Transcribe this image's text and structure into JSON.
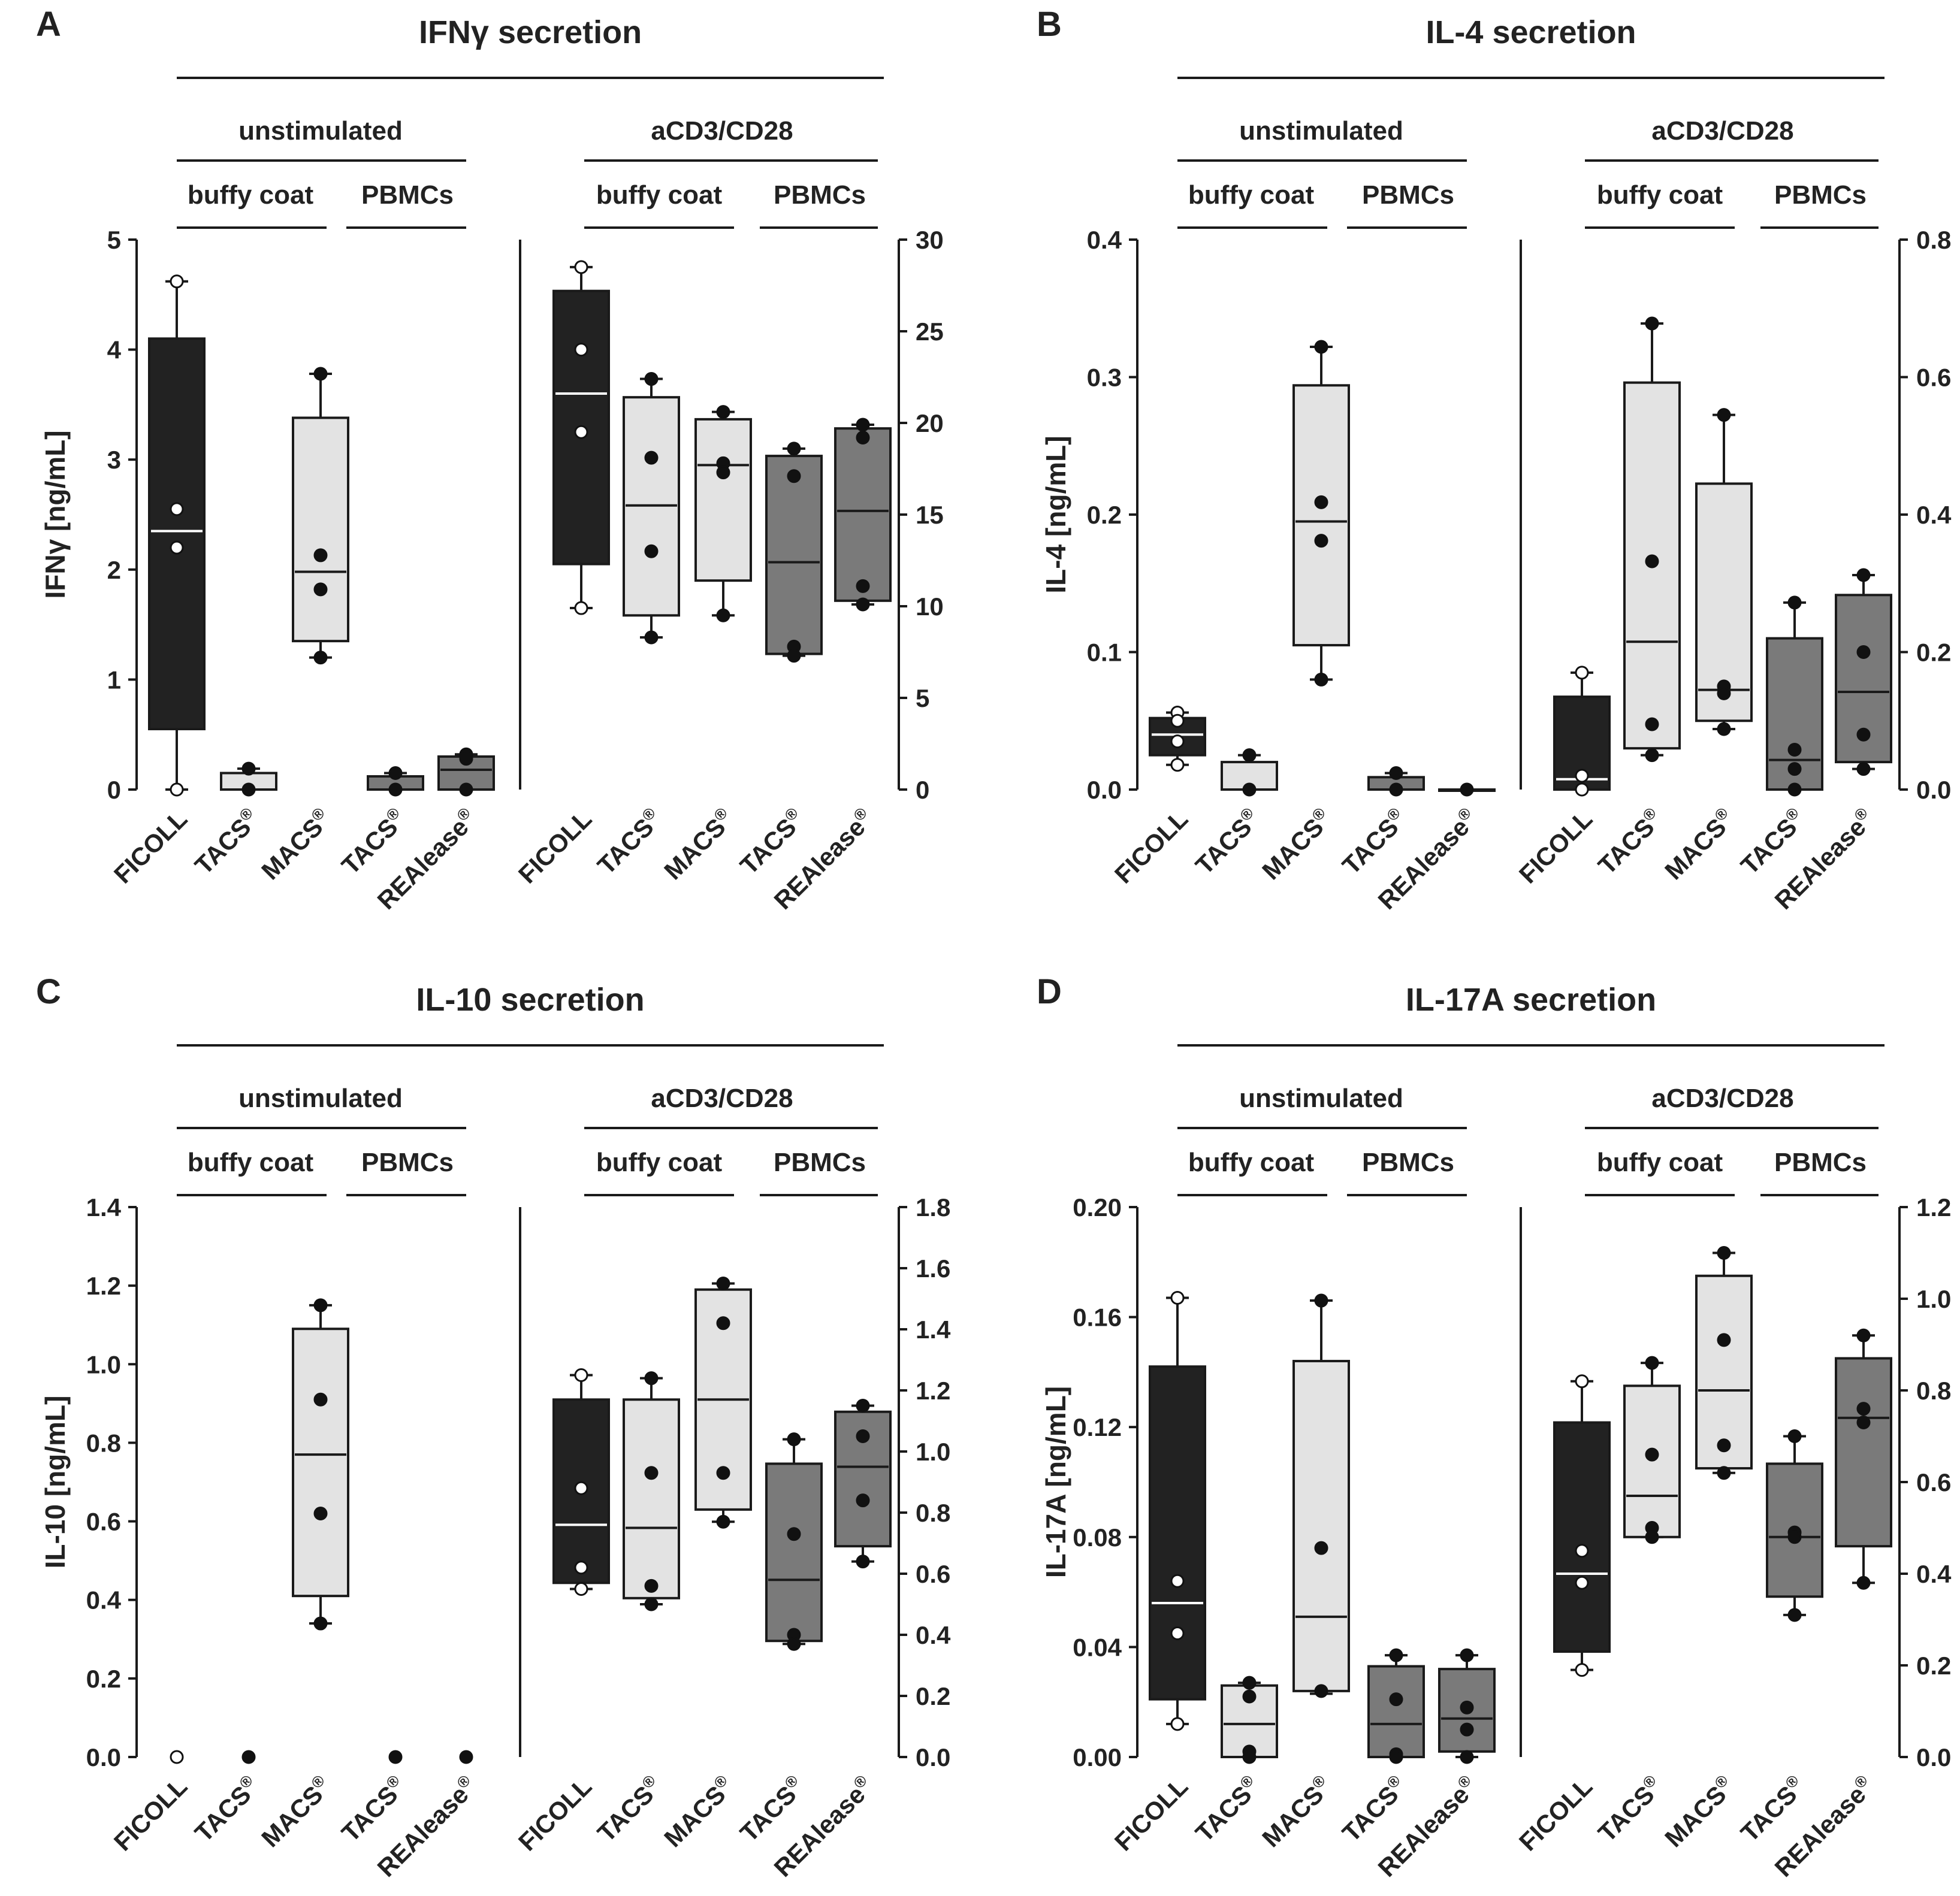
{
  "figure": {
    "colors": {
      "FICOLL": "#222222",
      "TACS_BC": "#e3e3e3",
      "MACS_BC": "#e3e3e3",
      "TACS_PB": "#7a7a7a",
      "REAlease_PB": "#7a7a7a"
    },
    "group_labels": {
      "unstimulated": "unstimulated",
      "stimulated": "aCD3/CD28",
      "buffy_coat": "buffy coat",
      "pbmcs": "PBMCs"
    },
    "methods": [
      "FICOLL",
      "TACS",
      "MACS",
      "TACS",
      "REAlease"
    ],
    "reg_mark": "®"
  },
  "chart_data": [
    {
      "panel": "A",
      "type": "box",
      "title": "IFNγ secretion",
      "ylabel": "IFNγ [ng/mL]",
      "left_axis": {
        "range": [
          0,
          5
        ],
        "ticks": [
          "0",
          "1",
          "2",
          "3",
          "4",
          "5"
        ]
      },
      "right_axis": {
        "range": [
          0,
          30
        ],
        "ticks": [
          "0",
          "5",
          "10",
          "15",
          "20",
          "25",
          "30"
        ]
      },
      "unstimulated": [
        {
          "method": "FICOLL",
          "q1": 0.55,
          "median": 2.35,
          "q3": 4.1,
          "whisker_low": 0.0,
          "whisker_high": 4.62,
          "points": [
            2.55,
            2.2,
            0.0,
            4.62
          ]
        },
        {
          "method": "TACS",
          "q1": 0.0,
          "median": 0.0,
          "q3": 0.15,
          "whisker_low": 0.0,
          "whisker_high": 0.19,
          "points": [
            0.19,
            0.0
          ]
        },
        {
          "method": "MACS",
          "q1": 1.35,
          "median": 1.98,
          "q3": 3.38,
          "whisker_low": 1.2,
          "whisker_high": 3.78,
          "points": [
            3.78,
            2.13,
            1.82,
            1.2
          ]
        },
        {
          "method": "TACS",
          "q1": 0.0,
          "median": 0.0,
          "q3": 0.12,
          "whisker_low": 0.0,
          "whisker_high": 0.15,
          "points": [
            0.15,
            0.0
          ]
        },
        {
          "method": "REAlease",
          "q1": 0.0,
          "median": 0.18,
          "q3": 0.3,
          "whisker_low": 0.0,
          "whisker_high": 0.32,
          "points": [
            0.32,
            0.0,
            0.28
          ]
        }
      ],
      "stimulated": [
        {
          "method": "FICOLL",
          "q1": 12.3,
          "median": 21.6,
          "q3": 27.2,
          "whisker_low": 9.9,
          "whisker_high": 28.5,
          "points": [
            28.5,
            24.0,
            19.5,
            9.9
          ]
        },
        {
          "method": "TACS",
          "q1": 9.5,
          "median": 15.5,
          "q3": 21.4,
          "whisker_low": 8.3,
          "whisker_high": 22.4,
          "points": [
            22.4,
            18.1,
            13.0,
            8.3
          ]
        },
        {
          "method": "MACS",
          "q1": 11.4,
          "median": 17.7,
          "q3": 20.2,
          "whisker_low": 9.5,
          "whisker_high": 20.6,
          "points": [
            20.6,
            17.8,
            17.3,
            9.5
          ]
        },
        {
          "method": "TACS",
          "q1": 7.4,
          "median": 12.4,
          "q3": 18.2,
          "whisker_low": 7.3,
          "whisker_high": 18.6,
          "points": [
            18.6,
            17.1,
            7.8,
            7.3
          ]
        },
        {
          "method": "REAlease",
          "q1": 10.3,
          "median": 15.2,
          "q3": 19.7,
          "whisker_low": 10.1,
          "whisker_high": 19.9,
          "points": [
            19.9,
            19.2,
            11.1,
            10.1
          ]
        }
      ]
    },
    {
      "panel": "B",
      "type": "box",
      "title": "IL-4 secretion",
      "ylabel": "IL-4 [ng/mL]",
      "left_axis": {
        "range": [
          0,
          0.4
        ],
        "ticks": [
          "0.0",
          "0.1",
          "0.2",
          "0.3",
          "0.4"
        ]
      },
      "right_axis": {
        "range": [
          0,
          0.8
        ],
        "ticks": [
          "0.0",
          "0.2",
          "0.4",
          "0.6",
          "0.8"
        ]
      },
      "unstimulated": [
        {
          "method": "FICOLL",
          "q1": 0.025,
          "median": 0.04,
          "q3": 0.052,
          "whisker_low": 0.018,
          "whisker_high": 0.056,
          "points": [
            0.056,
            0.05,
            0.035,
            0.018
          ]
        },
        {
          "method": "TACS",
          "q1": 0.0,
          "median": 0.0,
          "q3": 0.02,
          "whisker_low": 0.0,
          "whisker_high": 0.025,
          "points": [
            0.025,
            0.0
          ]
        },
        {
          "method": "MACS",
          "q1": 0.105,
          "median": 0.195,
          "q3": 0.294,
          "whisker_low": 0.08,
          "whisker_high": 0.322,
          "points": [
            0.322,
            0.209,
            0.181,
            0.08
          ]
        },
        {
          "method": "TACS",
          "q1": 0.0,
          "median": 0.0,
          "q3": 0.009,
          "whisker_low": 0.0,
          "whisker_high": 0.012,
          "points": [
            0.012,
            0.0
          ]
        },
        {
          "method": "REAlease",
          "q1": 0.0,
          "median": 0.0,
          "q3": 0.0,
          "whisker_low": 0.0,
          "whisker_high": 0.0,
          "points": [
            0.0
          ]
        }
      ],
      "stimulated": [
        {
          "method": "FICOLL",
          "q1": 0.0,
          "median": 0.015,
          "q3": 0.135,
          "whisker_low": 0.0,
          "whisker_high": 0.17,
          "points": [
            0.17,
            0.02,
            0.0
          ]
        },
        {
          "method": "TACS",
          "q1": 0.06,
          "median": 0.215,
          "q3": 0.592,
          "whisker_low": 0.05,
          "whisker_high": 0.678,
          "points": [
            0.678,
            0.332,
            0.095,
            0.05
          ]
        },
        {
          "method": "MACS",
          "q1": 0.1,
          "median": 0.145,
          "q3": 0.445,
          "whisker_low": 0.088,
          "whisker_high": 0.545,
          "points": [
            0.545,
            0.15,
            0.14,
            0.088
          ]
        },
        {
          "method": "TACS",
          "q1": 0.0,
          "median": 0.043,
          "q3": 0.22,
          "whisker_low": 0.0,
          "whisker_high": 0.272,
          "points": [
            0.272,
            0.058,
            0.03,
            0.0
          ]
        },
        {
          "method": "REAlease",
          "q1": 0.04,
          "median": 0.142,
          "q3": 0.283,
          "whisker_low": 0.03,
          "whisker_high": 0.312,
          "points": [
            0.312,
            0.2,
            0.08,
            0.03
          ]
        }
      ]
    },
    {
      "panel": "C",
      "type": "box",
      "title": "IL-10 secretion",
      "ylabel": "IL-10 [ng/mL]",
      "left_axis": {
        "range": [
          0,
          1.4
        ],
        "ticks": [
          "0.0",
          "0.2",
          "0.4",
          "0.6",
          "0.8",
          "1.0",
          "1.2",
          "1.4"
        ]
      },
      "right_axis": {
        "range": [
          0,
          1.8
        ],
        "ticks": [
          "0.0",
          "0.2",
          "0.4",
          "0.6",
          "0.8",
          "1.0",
          "1.2",
          "1.4",
          "1.6",
          "1.8"
        ]
      },
      "unstimulated": [
        {
          "method": "FICOLL",
          "points": [
            0.0
          ]
        },
        {
          "method": "TACS",
          "points": [
            0.0
          ]
        },
        {
          "method": "MACS",
          "q1": 0.41,
          "median": 0.77,
          "q3": 1.09,
          "whisker_low": 0.34,
          "whisker_high": 1.15,
          "points": [
            1.15,
            0.91,
            0.62,
            0.34
          ]
        },
        {
          "method": "TACS",
          "points": [
            0.0
          ]
        },
        {
          "method": "REAlease",
          "points": [
            0.0
          ]
        }
      ],
      "stimulated": [
        {
          "method": "FICOLL",
          "q1": 0.57,
          "median": 0.76,
          "q3": 1.17,
          "whisker_low": 0.55,
          "whisker_high": 1.25,
          "points": [
            1.25,
            0.88,
            0.62,
            0.55
          ]
        },
        {
          "method": "TACS",
          "q1": 0.52,
          "median": 0.75,
          "q3": 1.17,
          "whisker_low": 0.5,
          "whisker_high": 1.24,
          "points": [
            1.24,
            0.93,
            0.56,
            0.5
          ]
        },
        {
          "method": "MACS",
          "q1": 0.81,
          "median": 1.17,
          "q3": 1.53,
          "whisker_low": 0.77,
          "whisker_high": 1.55,
          "points": [
            1.55,
            1.42,
            0.93,
            0.77
          ]
        },
        {
          "method": "TACS",
          "q1": 0.38,
          "median": 0.58,
          "q3": 0.96,
          "whisker_low": 0.37,
          "whisker_high": 1.04,
          "points": [
            1.04,
            0.73,
            0.4,
            0.37
          ]
        },
        {
          "method": "REAlease",
          "q1": 0.69,
          "median": 0.95,
          "q3": 1.13,
          "whisker_low": 0.64,
          "whisker_high": 1.15,
          "points": [
            1.15,
            1.05,
            0.84,
            0.64
          ]
        }
      ]
    },
    {
      "panel": "D",
      "type": "box",
      "title": "IL-17A secretion",
      "ylabel": "IL-17A [ng/mL]",
      "left_axis": {
        "range": [
          0,
          0.2
        ],
        "ticks": [
          "0.00",
          "0.04",
          "0.08",
          "0.12",
          "0.16",
          "0.20"
        ]
      },
      "right_axis": {
        "range": [
          0,
          1.2
        ],
        "ticks": [
          "0.0",
          "0.2",
          "0.4",
          "0.6",
          "0.8",
          "1.0",
          "1.2"
        ]
      },
      "unstimulated": [
        {
          "method": "FICOLL",
          "q1": 0.021,
          "median": 0.056,
          "q3": 0.142,
          "whisker_low": 0.012,
          "whisker_high": 0.167,
          "points": [
            0.167,
            0.064,
            0.045,
            0.012
          ]
        },
        {
          "method": "TACS",
          "q1": 0.0,
          "median": 0.012,
          "q3": 0.026,
          "whisker_low": 0.0,
          "whisker_high": 0.027,
          "points": [
            0.027,
            0.022,
            0.002,
            0.0
          ]
        },
        {
          "method": "MACS",
          "q1": 0.024,
          "median": 0.051,
          "q3": 0.144,
          "whisker_low": 0.023,
          "whisker_high": 0.166,
          "points": [
            0.166,
            0.076,
            0.024
          ]
        },
        {
          "method": "TACS",
          "q1": 0.0,
          "median": 0.012,
          "q3": 0.033,
          "whisker_low": 0.0,
          "whisker_high": 0.037,
          "points": [
            0.037,
            0.021,
            0.001,
            0.0
          ]
        },
        {
          "method": "REAlease",
          "q1": 0.002,
          "median": 0.014,
          "q3": 0.032,
          "whisker_low": 0.0,
          "whisker_high": 0.037,
          "points": [
            0.037,
            0.018,
            0.01,
            0.0
          ]
        }
      ],
      "stimulated": [
        {
          "method": "FICOLL",
          "q1": 0.23,
          "median": 0.4,
          "q3": 0.73,
          "whisker_low": 0.19,
          "whisker_high": 0.82,
          "points": [
            0.82,
            0.45,
            0.38,
            0.19
          ]
        },
        {
          "method": "TACS",
          "q1": 0.48,
          "median": 0.57,
          "q3": 0.81,
          "whisker_low": 0.48,
          "whisker_high": 0.86,
          "points": [
            0.86,
            0.66,
            0.5,
            0.48
          ]
        },
        {
          "method": "MACS",
          "q1": 0.63,
          "median": 0.8,
          "q3": 1.05,
          "whisker_low": 0.62,
          "whisker_high": 1.1,
          "points": [
            1.1,
            0.91,
            0.68,
            0.62
          ]
        },
        {
          "method": "TACS",
          "q1": 0.35,
          "median": 0.48,
          "q3": 0.64,
          "whisker_low": 0.31,
          "whisker_high": 0.7,
          "points": [
            0.7,
            0.49,
            0.48,
            0.31
          ]
        },
        {
          "method": "REAlease",
          "q1": 0.46,
          "median": 0.74,
          "q3": 0.87,
          "whisker_low": 0.38,
          "whisker_high": 0.92,
          "points": [
            0.92,
            0.76,
            0.73,
            0.38
          ]
        }
      ]
    }
  ]
}
